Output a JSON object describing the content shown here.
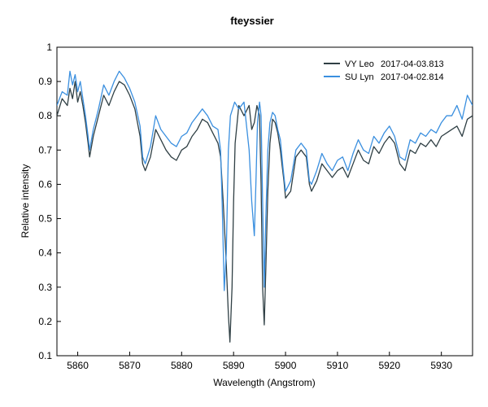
{
  "chart_data": {
    "type": "line",
    "title": "fteyssier",
    "xlabel": "Wavelength (Angstrom)",
    "ylabel": "Relative intensity",
    "xlim": [
      5856,
      5936
    ],
    "ylim": [
      0.1,
      1.0
    ],
    "xticks": [
      "5860",
      "5870",
      "5880",
      "5890",
      "5900",
      "5910",
      "5920",
      "5930"
    ],
    "yticks": [
      "0.1",
      "0.2",
      "0.3",
      "0.4",
      "0.5",
      "0.6",
      "0.7",
      "0.8",
      "0.9",
      "1"
    ],
    "legend_position": "top-right",
    "grid": false,
    "series": [
      {
        "name": "VY Leo",
        "date": "2017-04-03.813",
        "color": "#2f3f44",
        "x": [
          5856,
          5857,
          5858,
          5858.5,
          5859,
          5859.5,
          5860,
          5860.5,
          5861,
          5861.5,
          5862,
          5862.3,
          5863,
          5864,
          5865,
          5866,
          5867,
          5868,
          5869,
          5870,
          5871,
          5872,
          5872.5,
          5873,
          5874,
          5875,
          5876,
          5877,
          5878,
          5879,
          5880,
          5881,
          5882,
          5883,
          5884,
          5885,
          5886,
          5887,
          5887.5,
          5888,
          5888.5,
          5889,
          5889.3,
          5889.7,
          5890,
          5890.3,
          5890.7,
          5891,
          5892,
          5893,
          5893.5,
          5894,
          5894.5,
          5895,
          5895.3,
          5895.6,
          5895.9,
          5896.2,
          5896.6,
          5897,
          5897.5,
          5898,
          5898.5,
          5899,
          5899.3,
          5899.7,
          5900,
          5901,
          5902,
          5903,
          5904,
          5904.6,
          5905,
          5906,
          5907,
          5908,
          5909,
          5910,
          5911,
          5912,
          5913,
          5914,
          5915,
          5916,
          5917,
          5918,
          5919,
          5920,
          5921,
          5922,
          5923,
          5924,
          5925,
          5926,
          5927,
          5928,
          5929,
          5930,
          5931,
          5932,
          5933,
          5934,
          5935,
          5936
        ],
        "y": [
          0.8,
          0.85,
          0.83,
          0.88,
          0.85,
          0.9,
          0.84,
          0.87,
          0.83,
          0.78,
          0.72,
          0.68,
          0.74,
          0.8,
          0.86,
          0.83,
          0.87,
          0.9,
          0.89,
          0.86,
          0.82,
          0.74,
          0.66,
          0.64,
          0.68,
          0.76,
          0.73,
          0.7,
          0.68,
          0.67,
          0.7,
          0.71,
          0.74,
          0.76,
          0.79,
          0.78,
          0.75,
          0.72,
          0.68,
          0.55,
          0.4,
          0.22,
          0.14,
          0.3,
          0.55,
          0.72,
          0.78,
          0.83,
          0.8,
          0.83,
          0.76,
          0.78,
          0.83,
          0.8,
          0.6,
          0.3,
          0.19,
          0.35,
          0.58,
          0.72,
          0.79,
          0.78,
          0.75,
          0.7,
          0.66,
          0.61,
          0.56,
          0.58,
          0.68,
          0.7,
          0.68,
          0.6,
          0.58,
          0.61,
          0.66,
          0.64,
          0.62,
          0.64,
          0.65,
          0.62,
          0.66,
          0.7,
          0.67,
          0.66,
          0.71,
          0.69,
          0.72,
          0.74,
          0.72,
          0.66,
          0.64,
          0.7,
          0.69,
          0.72,
          0.71,
          0.73,
          0.71,
          0.74,
          0.75,
          0.76,
          0.77,
          0.74,
          0.79,
          0.8
        ]
      },
      {
        "name": "SU Lyn",
        "date": "2017-04-02.814",
        "color": "#3a8fdf",
        "x": [
          5856,
          5857,
          5858,
          5858.5,
          5859,
          5859.5,
          5860,
          5860.5,
          5861,
          5861.5,
          5862,
          5862.3,
          5863,
          5864,
          5865,
          5866,
          5867,
          5868,
          5869,
          5870,
          5871,
          5872,
          5872.5,
          5873,
          5874,
          5875,
          5876,
          5877,
          5878,
          5879,
          5880,
          5881,
          5882,
          5883,
          5884,
          5885,
          5886,
          5887,
          5887.5,
          5887.8,
          5888.2,
          5888.6,
          5889,
          5889.4,
          5889.8,
          5890.2,
          5891,
          5892,
          5893,
          5893.5,
          5894,
          5894.3,
          5894.6,
          5895,
          5895.3,
          5895.6,
          5895.9,
          5896.2,
          5896.6,
          5897,
          5897.5,
          5898,
          5898.5,
          5899,
          5899.5,
          5900,
          5901,
          5902,
          5903,
          5904,
          5904.6,
          5905,
          5906,
          5907,
          5908,
          5909,
          5910,
          5911,
          5912,
          5913,
          5914,
          5915,
          5916,
          5917,
          5918,
          5919,
          5920,
          5921,
          5922,
          5923,
          5924,
          5925,
          5926,
          5927,
          5928,
          5929,
          5930,
          5931,
          5932,
          5933,
          5934,
          5935,
          5936
        ],
        "y": [
          0.83,
          0.87,
          0.86,
          0.93,
          0.89,
          0.92,
          0.87,
          0.9,
          0.85,
          0.8,
          0.74,
          0.7,
          0.76,
          0.82,
          0.89,
          0.86,
          0.9,
          0.93,
          0.91,
          0.88,
          0.84,
          0.77,
          0.68,
          0.66,
          0.71,
          0.8,
          0.76,
          0.74,
          0.72,
          0.71,
          0.74,
          0.75,
          0.78,
          0.8,
          0.82,
          0.8,
          0.77,
          0.76,
          0.7,
          0.55,
          0.29,
          0.4,
          0.7,
          0.8,
          0.82,
          0.84,
          0.82,
          0.84,
          0.7,
          0.55,
          0.45,
          0.6,
          0.78,
          0.84,
          0.8,
          0.55,
          0.3,
          0.5,
          0.7,
          0.78,
          0.81,
          0.8,
          0.76,
          0.73,
          0.65,
          0.58,
          0.61,
          0.7,
          0.72,
          0.7,
          0.61,
          0.6,
          0.64,
          0.69,
          0.66,
          0.64,
          0.67,
          0.68,
          0.64,
          0.69,
          0.73,
          0.7,
          0.69,
          0.74,
          0.72,
          0.75,
          0.77,
          0.74,
          0.68,
          0.67,
          0.73,
          0.72,
          0.75,
          0.74,
          0.76,
          0.75,
          0.78,
          0.8,
          0.8,
          0.83,
          0.79,
          0.86,
          0.83
        ]
      }
    ]
  }
}
